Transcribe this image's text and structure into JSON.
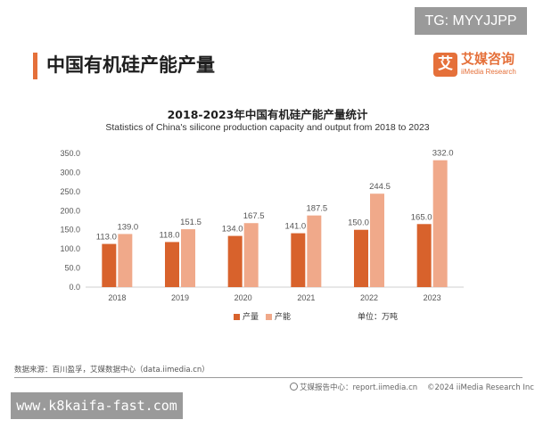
{
  "badge": "TG: MYYJJPP",
  "page_title": "中国有机硅产能产量",
  "logo": {
    "mark": "艾",
    "name_cn": "艾媒咨询",
    "name_en": "iiMedia Research"
  },
  "colors": {
    "accent": "#e5703a",
    "production": "#d8622c",
    "capacity": "#f0a98a",
    "axis": "#cfcfcf"
  },
  "chart_data": {
    "type": "bar",
    "title": "2018-2023年中国有机硅产能产量统计",
    "subtitle": "Statistics of China's silicone production capacity and output from 2018 to 2023",
    "categories": [
      "2018",
      "2019",
      "2020",
      "2021",
      "2022",
      "2023"
    ],
    "series": [
      {
        "name": "产量",
        "values": [
          113.0,
          118.0,
          134.0,
          141.0,
          150.0,
          165.0
        ],
        "labels": [
          "113.0",
          "118.0",
          "134.0",
          "141.0",
          "150.0",
          "165.0"
        ]
      },
      {
        "name": "产能",
        "values": [
          139.0,
          151.5,
          167.5,
          187.5,
          244.5,
          332.0
        ],
        "labels": [
          "139.0",
          "151.5",
          "167.5",
          "187.5",
          "244.5",
          "332.0"
        ]
      }
    ],
    "ylim": [
      0,
      350
    ],
    "yticks": [
      "0.0",
      "50.0",
      "100.0",
      "150.0",
      "200.0",
      "250.0",
      "300.0",
      "350.0"
    ],
    "unit": "单位：万吨",
    "legend_position": "bottom",
    "grid": false
  },
  "source": "数据来源：百川盈孚，艾媒数据中心（data.iimedia.cn）",
  "footer": {
    "site": "艾媒报告中心：report.iimedia.cn",
    "copyright": "©2024  iiMedia Research Inc"
  },
  "watermark": "www.k8kaifa-fast.com"
}
